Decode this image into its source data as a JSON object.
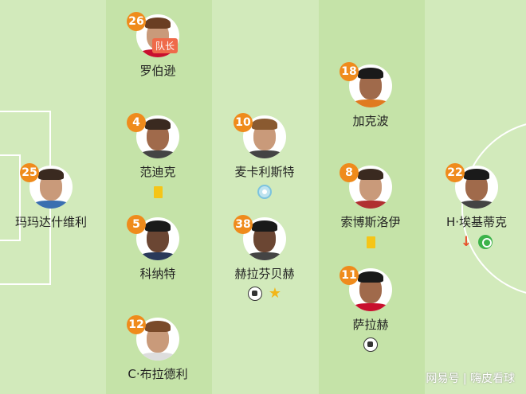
{
  "colors": {
    "badge": "#ef8b1c",
    "pitch_light": "#d2eabb",
    "pitch_dark": "#c5e3a8",
    "yellow_card": "#f5c518"
  },
  "players": [
    {
      "number": "26",
      "name": "罗伯逊",
      "badge": "队长",
      "icons": []
    },
    {
      "number": "4",
      "name": "范迪克",
      "icons": [
        "yellow-card"
      ]
    },
    {
      "number": "5",
      "name": "科纳特",
      "icons": []
    },
    {
      "number": "12",
      "name": "C·布拉德利",
      "icons": []
    },
    {
      "number": "25",
      "name": "玛玛达什维利",
      "icons": []
    },
    {
      "number": "10",
      "name": "麦卡利斯特",
      "icons": [
        "assist"
      ]
    },
    {
      "number": "38",
      "name": "赫拉芬贝赫",
      "icons": [
        "goal",
        "star"
      ]
    },
    {
      "number": "18",
      "name": "加克波",
      "icons": []
    },
    {
      "number": "8",
      "name": "索博斯洛伊",
      "icons": [
        "yellow-card"
      ]
    },
    {
      "number": "11",
      "name": "萨拉赫",
      "icons": [
        "goal"
      ]
    },
    {
      "number": "22",
      "name": "H·埃基蒂克",
      "icons": [
        "substituted-off",
        "substitution-in"
      ]
    }
  ],
  "watermark": "网易号 | 嗨皮看球"
}
